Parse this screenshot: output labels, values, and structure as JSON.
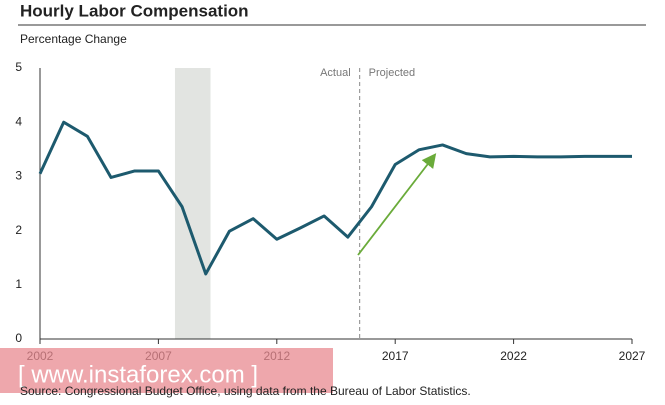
{
  "chart_data": {
    "type": "line",
    "title": "Hourly Labor Compensation",
    "subtitle": "Percentage Change",
    "x": [
      2002,
      2003,
      2004,
      2005,
      2006,
      2007,
      2008,
      2009,
      2010,
      2011,
      2012,
      2013,
      2014,
      2015,
      2016,
      2017,
      2018,
      2019,
      2020,
      2021,
      2022,
      2023,
      2024,
      2025,
      2026,
      2027
    ],
    "series": [
      {
        "name": "Hourly Labor Compensation",
        "color": "#1d5a6e",
        "values": [
          3.05,
          4.0,
          3.74,
          2.98,
          3.1,
          3.1,
          2.44,
          1.2,
          1.99,
          2.22,
          1.84,
          2.05,
          2.27,
          1.88,
          2.44,
          3.22,
          3.49,
          3.58,
          3.42,
          3.36,
          3.37,
          3.36,
          3.36,
          3.37,
          3.37,
          3.37
        ]
      }
    ],
    "xlim": [
      2002,
      2027
    ],
    "xticks": [
      2002,
      2007,
      2012,
      2017,
      2022,
      2027
    ],
    "ylim": [
      0,
      5
    ],
    "yticks": [
      0,
      1,
      2,
      3,
      4,
      5
    ],
    "recession": [
      2007.7,
      2009.2
    ],
    "divider": 2015.5,
    "divider_labels": [
      "Actual",
      "Projected"
    ],
    "source": "Source: Congressional Budget Office, using data from the Bureau of Labor Statistics.",
    "watermark": "[ www.instaforex.com ]"
  }
}
